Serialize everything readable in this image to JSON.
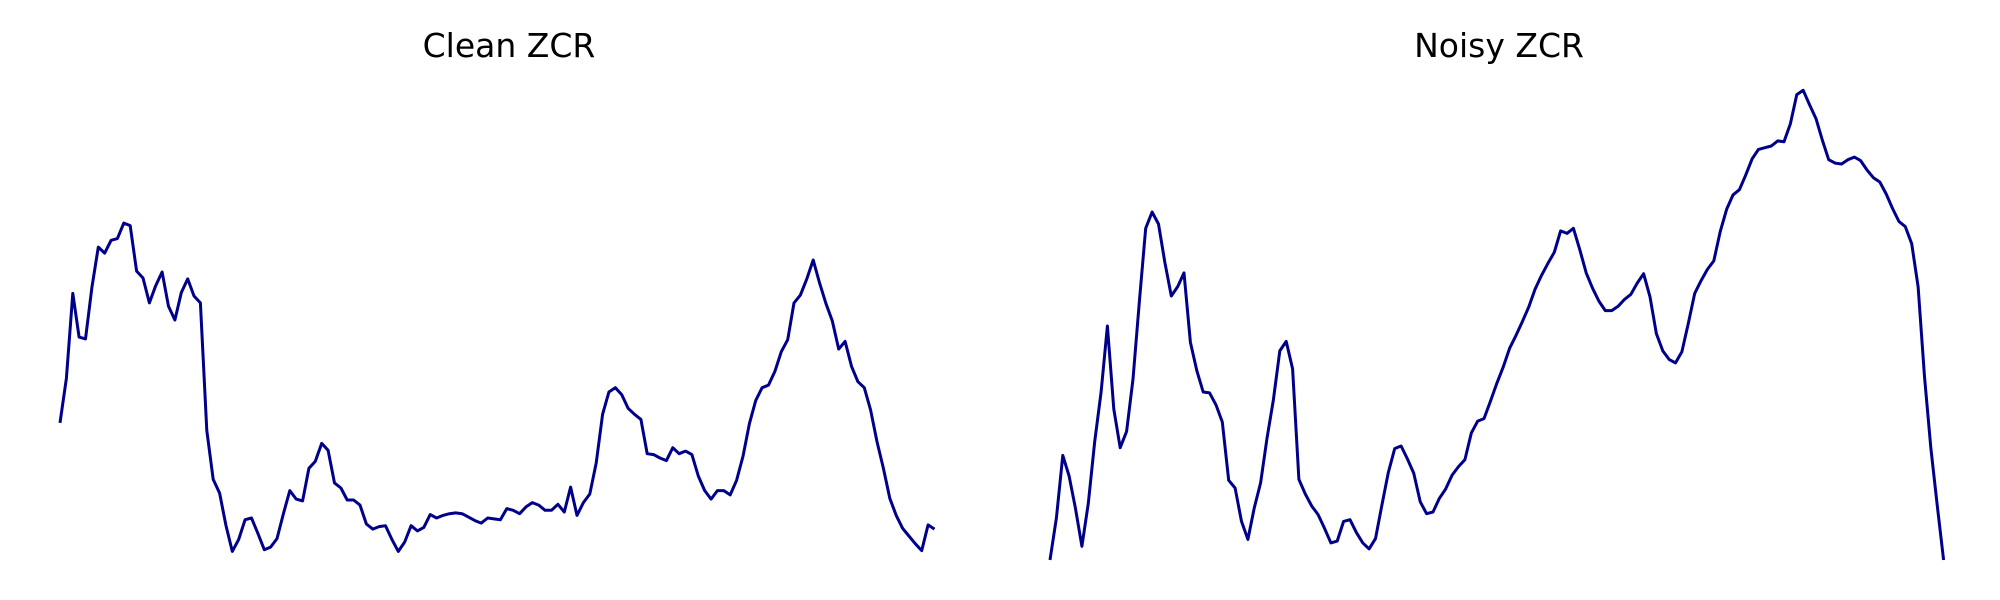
{
  "chart_data": [
    {
      "type": "line",
      "title": "Clean ZCR",
      "xlabel": "",
      "ylabel": "",
      "grid": false,
      "axes_visible": false,
      "line_color": "#00008b",
      "xlim": [
        0,
        141
      ],
      "ylim": [
        0,
        0.56
      ],
      "x": [
        0,
        1,
        2,
        3,
        4,
        5,
        6,
        7,
        8,
        9,
        10,
        11,
        12,
        13,
        14,
        15,
        16,
        17,
        18,
        19,
        20,
        21,
        22,
        23,
        24,
        25,
        26,
        27,
        28,
        29,
        30,
        31,
        32,
        33,
        34,
        35,
        36,
        37,
        38,
        39,
        40,
        41,
        42,
        43,
        44,
        45,
        46,
        47,
        48,
        49,
        50,
        51,
        52,
        53,
        54,
        55,
        56,
        57,
        58,
        59,
        60,
        61,
        62,
        63,
        64,
        65,
        66,
        67,
        68,
        69,
        70,
        71,
        72,
        73,
        74,
        75,
        76,
        77,
        78,
        79,
        80,
        81,
        82,
        83,
        84,
        85,
        86,
        87,
        88,
        89,
        90,
        91,
        92,
        93,
        94,
        95,
        96,
        97,
        98,
        99,
        100,
        101,
        102,
        103,
        104,
        105,
        106,
        107,
        108,
        109,
        110,
        111,
        112,
        113,
        114,
        115,
        116,
        117,
        118,
        119,
        120,
        121,
        122,
        123,
        124,
        125,
        126,
        127,
        128,
        129,
        130,
        131,
        132,
        133,
        134,
        135,
        136,
        137
      ],
      "values": [
        0.16,
        0.212,
        0.311,
        0.26,
        0.258,
        0.318,
        0.365,
        0.358,
        0.373,
        0.375,
        0.393,
        0.39,
        0.337,
        0.329,
        0.3,
        0.32,
        0.336,
        0.296,
        0.28,
        0.312,
        0.328,
        0.308,
        0.3,
        0.151,
        0.094,
        0.078,
        0.04,
        0.01,
        0.024,
        0.047,
        0.049,
        0.031,
        0.012,
        0.015,
        0.025,
        0.054,
        0.081,
        0.071,
        0.069,
        0.107,
        0.115,
        0.136,
        0.128,
        0.09,
        0.084,
        0.07,
        0.07,
        0.064,
        0.042,
        0.036,
        0.039,
        0.04,
        0.024,
        0.01,
        0.021,
        0.04,
        0.034,
        0.038,
        0.053,
        0.049,
        0.052,
        0.054,
        0.055,
        0.054,
        0.05,
        0.046,
        0.043,
        0.049,
        0.048,
        0.047,
        0.06,
        0.058,
        0.054,
        0.062,
        0.067,
        0.064,
        0.058,
        0.058,
        0.065,
        0.056,
        0.085,
        0.052,
        0.067,
        0.077,
        0.113,
        0.17,
        0.196,
        0.201,
        0.193,
        0.177,
        0.17,
        0.164,
        0.124,
        0.123,
        0.119,
        0.116,
        0.131,
        0.124,
        0.127,
        0.123,
        0.098,
        0.081,
        0.071,
        0.081,
        0.081,
        0.076,
        0.093,
        0.121,
        0.159,
        0.186,
        0.201,
        0.204,
        0.22,
        0.243,
        0.257,
        0.3,
        0.309,
        0.328,
        0.35,
        0.323,
        0.299,
        0.279,
        0.246,
        0.255,
        0.226,
        0.208,
        0.201,
        0.175,
        0.138,
        0.107,
        0.072,
        0.052,
        0.037,
        0.028,
        0.019,
        0.011,
        0.041,
        0.036
      ],
      "shown_values": [
        0.16,
        0.212,
        0.311,
        0.26,
        0.258,
        0.318,
        0.365,
        0.358,
        0.373,
        0.375,
        0.393,
        0.39,
        0.337,
        0.329,
        0.3,
        0.32,
        0.336,
        0.296,
        0.28,
        0.312,
        0.328,
        0.308,
        0.3,
        0.151,
        0.094,
        0.078,
        0.04,
        0.01,
        0.024,
        0.047,
        0.049,
        0.031,
        0.012,
        0.015,
        0.025,
        0.054,
        0.081,
        0.071,
        0.069,
        0.107,
        0.115,
        0.136,
        0.128,
        0.09,
        0.084,
        0.07,
        0.07,
        0.064,
        0.042,
        0.036,
        0.039,
        0.04,
        0.024,
        0.01,
        0.021,
        0.04,
        0.034,
        0.038,
        0.053,
        0.049,
        0.052,
        0.054,
        0.055,
        0.054,
        0.05,
        0.046,
        0.043,
        0.049,
        0.048,
        0.047,
        0.06,
        0.058,
        0.054,
        0.062,
        0.067,
        0.064,
        0.058,
        0.058,
        0.065,
        0.056,
        0.085,
        0.052,
        0.067,
        0.077,
        0.113,
        0.17,
        0.196,
        0.201,
        0.193,
        0.177,
        0.17,
        0.164,
        0.124,
        0.123,
        0.119,
        0.116,
        0.131,
        0.124,
        0.127,
        0.123,
        0.098,
        0.081,
        0.071,
        0.081,
        0.081,
        0.076,
        0.093,
        0.121,
        0.159,
        0.186,
        0.201,
        0.204,
        0.22,
        0.243,
        0.257,
        0.3,
        0.309,
        0.328,
        0.35,
        0.323,
        0.299,
        0.279,
        0.246,
        0.255,
        0.226,
        0.208,
        0.201,
        0.175,
        0.138,
        0.107,
        0.072,
        0.052,
        0.037,
        0.028,
        0.019,
        0.011,
        0.041,
        0.036
      ]
    },
    {
      "type": "line",
      "title": "Noisy ZCR",
      "xlabel": "",
      "ylabel": "",
      "grid": false,
      "axes_visible": false,
      "line_color": "#00008b",
      "xlim": [
        0,
        141
      ],
      "ylim": [
        0,
        0.56
      ],
      "x": [
        0,
        1,
        2,
        3,
        4,
        5,
        6,
        7,
        8,
        9,
        10,
        11,
        12,
        13,
        14,
        15,
        16,
        17,
        18,
        19,
        20,
        21,
        22,
        23,
        24,
        25,
        26,
        27,
        28,
        29,
        30,
        31,
        32,
        33,
        34,
        35,
        36,
        37,
        38,
        39,
        40,
        41,
        42,
        43,
        44,
        45,
        46,
        47,
        48,
        49,
        50,
        51,
        52,
        53,
        54,
        55,
        56,
        57,
        58,
        59,
        60,
        61,
        62,
        63,
        64,
        65,
        66,
        67,
        68,
        69,
        70,
        71,
        72,
        73,
        74,
        75,
        76,
        77,
        78,
        79,
        80,
        81,
        82,
        83,
        84,
        85,
        86,
        87,
        88,
        89,
        90,
        91,
        92,
        93,
        94,
        95,
        96,
        97,
        98,
        99,
        100,
        101,
        102,
        103,
        104,
        105,
        106,
        107,
        108,
        109,
        110,
        111,
        112,
        113,
        114,
        115,
        116,
        117,
        118,
        119,
        120,
        121,
        122,
        123,
        124,
        125,
        126,
        127,
        128,
        129,
        130,
        131,
        132,
        133,
        134,
        135,
        136,
        137,
        138,
        139,
        140
      ],
      "values": [
        0.0,
        0.049,
        0.122,
        0.098,
        0.06,
        0.016,
        0.066,
        0.138,
        0.196,
        0.273,
        0.176,
        0.131,
        0.15,
        0.211,
        0.302,
        0.387,
        0.406,
        0.392,
        0.347,
        0.308,
        0.319,
        0.335,
        0.254,
        0.221,
        0.196,
        0.195,
        0.181,
        0.161,
        0.093,
        0.084,
        0.045,
        0.024,
        0.061,
        0.09,
        0.142,
        0.187,
        0.244,
        0.255,
        0.223,
        0.094,
        0.077,
        0.063,
        0.053,
        0.037,
        0.02,
        0.022,
        0.045,
        0.047,
        0.032,
        0.02,
        0.013,
        0.025,
        0.064,
        0.102,
        0.13,
        0.133,
        0.118,
        0.101,
        0.068,
        0.054,
        0.056,
        0.072,
        0.083,
        0.099,
        0.109,
        0.117,
        0.148,
        0.162,
        0.165,
        0.185,
        0.206,
        0.225,
        0.247,
        0.262,
        0.278,
        0.295,
        0.316,
        0.332,
        0.346,
        0.359,
        0.384,
        0.381,
        0.387,
        0.362,
        0.335,
        0.317,
        0.302,
        0.291,
        0.291,
        0.296,
        0.304,
        0.31,
        0.323,
        0.334,
        0.307,
        0.264,
        0.244,
        0.234,
        0.23,
        0.243,
        0.276,
        0.311,
        0.326,
        0.339,
        0.349,
        0.383,
        0.409,
        0.426,
        0.432,
        0.449,
        0.468,
        0.479,
        0.481,
        0.483,
        0.489,
        0.488,
        0.509,
        0.543,
        0.548,
        0.531,
        0.515,
        0.49,
        0.467,
        0.463,
        0.462,
        0.467,
        0.47,
        0.466,
        0.455,
        0.446,
        0.441,
        0.427,
        0.41,
        0.395,
        0.389,
        0.369,
        0.319,
        0.214,
        0.13,
        0.064,
        0.0
      ],
      "shown_values": [
        0.0,
        0.049,
        0.122,
        0.098,
        0.06,
        0.016,
        0.066,
        0.138,
        0.196,
        0.273,
        0.176,
        0.131,
        0.15,
        0.211,
        0.302,
        0.387,
        0.406,
        0.392,
        0.347,
        0.308,
        0.319,
        0.335,
        0.254,
        0.221,
        0.196,
        0.195,
        0.181,
        0.161,
        0.093,
        0.084,
        0.045,
        0.024,
        0.061,
        0.09,
        0.142,
        0.187,
        0.244,
        0.255,
        0.223,
        0.094,
        0.077,
        0.063,
        0.053,
        0.037,
        0.02,
        0.022,
        0.045,
        0.047,
        0.032,
        0.02,
        0.013,
        0.025,
        0.064,
        0.102,
        0.13,
        0.133,
        0.118,
        0.101,
        0.068,
        0.054,
        0.056,
        0.072,
        0.083,
        0.099,
        0.109,
        0.117,
        0.148,
        0.162,
        0.165,
        0.185,
        0.206,
        0.225,
        0.247,
        0.262,
        0.278,
        0.295,
        0.316,
        0.332,
        0.346,
        0.359,
        0.384,
        0.381,
        0.387,
        0.362,
        0.335,
        0.317,
        0.302,
        0.291,
        0.291,
        0.296,
        0.304,
        0.31,
        0.323,
        0.334,
        0.307,
        0.264,
        0.244,
        0.234,
        0.23,
        0.243,
        0.276,
        0.311,
        0.326,
        0.339,
        0.349,
        0.383,
        0.409,
        0.426,
        0.432,
        0.449,
        0.468,
        0.479,
        0.481,
        0.483,
        0.489,
        0.488,
        0.509,
        0.543,
        0.548,
        0.531,
        0.515,
        0.49,
        0.467,
        0.463,
        0.462,
        0.467,
        0.47,
        0.466,
        0.455,
        0.446,
        0.441,
        0.427,
        0.41,
        0.395,
        0.389,
        0.369,
        0.319,
        0.214,
        0.13,
        0.064,
        0.0
      ]
    }
  ]
}
